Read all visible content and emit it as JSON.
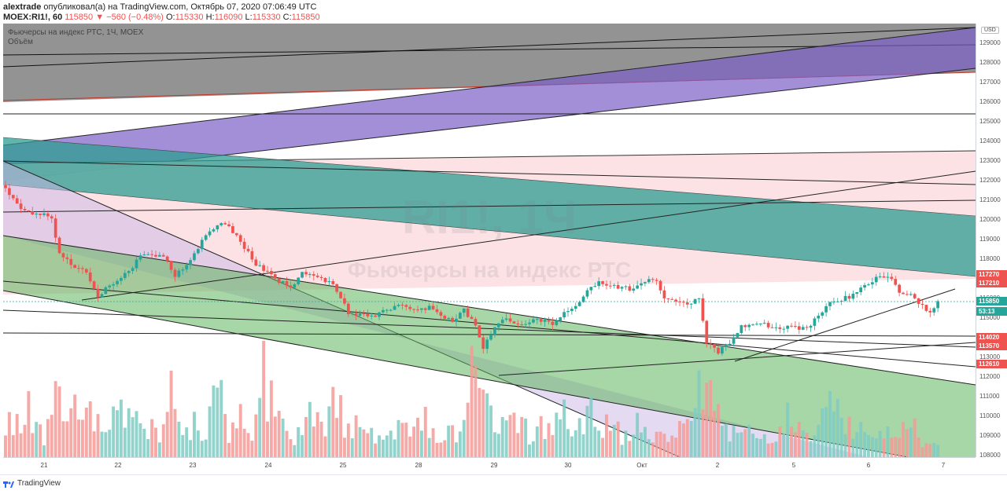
{
  "header": {
    "user": "alextrade",
    "published": "опубликовал(а) на TradingView.com, Октябрь 07, 2020 07:06:49 UTC",
    "symbol": "MOEX:RI1!, 60",
    "last": "115850",
    "change": "−560 (−0.48%)",
    "o_label": "O:",
    "o": "115330",
    "h_label": "H:",
    "h": "116090",
    "l_label": "L:",
    "l": "115330",
    "c_label": "C:",
    "c": "115850"
  },
  "legend": {
    "title": "Фьючерсы на индекс РТС, 1Ч, MOEX",
    "volume": "Объём"
  },
  "watermark": {
    "symbol": "RI1!, 1Ч",
    "description": "Фьючерсы на индекс РТС"
  },
  "footer": {
    "brand": "TradingView"
  },
  "colors": {
    "up": "#26a69a",
    "down": "#ef5350",
    "vol_up": "#7fcbc3",
    "vol_down": "#f49b98"
  },
  "chart_data": {
    "type": "candlestick",
    "currency": "USD",
    "y_ticks": [
      108000,
      109000,
      110000,
      111000,
      112000,
      113000,
      114000,
      115000,
      116000,
      117000,
      118000,
      119000,
      120000,
      121000,
      122000,
      123000,
      124000,
      125000,
      126000,
      127000,
      128000,
      129000
    ],
    "ylim": [
      107900,
      130000
    ],
    "x_labels": [
      "21",
      "22",
      "23",
      "24",
      "25",
      "28",
      "29",
      "30",
      "Окт",
      "2",
      "5",
      "6",
      "7"
    ],
    "price_tags": [
      {
        "label": "117270",
        "value": 117270,
        "color": "#ef5350"
      },
      {
        "label": "117210",
        "value": 117210,
        "color": "#ef5350"
      },
      {
        "label": "115850",
        "value": 115850,
        "color": "#26a69a"
      },
      {
        "label": "53:13",
        "value": 115500,
        "color": "#26a69a"
      },
      {
        "label": "114020",
        "value": 114020,
        "color": "#ef5350"
      },
      {
        "label": "113570",
        "value": 113570,
        "color": "#ef5350"
      },
      {
        "label": "112610",
        "value": 112610,
        "color": "#ef5350"
      }
    ],
    "last_price": 115850,
    "close_path": [
      [
        0,
        121600
      ],
      [
        4,
        120500
      ],
      [
        8,
        120300
      ],
      [
        12,
        120100
      ],
      [
        14,
        118300
      ],
      [
        18,
        117600
      ],
      [
        21,
        117400
      ],
      [
        24,
        116100
      ],
      [
        26,
        116500
      ],
      [
        29,
        116900
      ],
      [
        32,
        117300
      ],
      [
        35,
        118200
      ],
      [
        38,
        118300
      ],
      [
        41,
        118100
      ],
      [
        44,
        117200
      ],
      [
        47,
        117600
      ],
      [
        50,
        118600
      ],
      [
        53,
        119500
      ],
      [
        56,
        119900
      ],
      [
        59,
        119400
      ],
      [
        62,
        118600
      ],
      [
        65,
        117700
      ],
      [
        68,
        117400
      ],
      [
        71,
        116900
      ],
      [
        74,
        116600
      ],
      [
        77,
        117300
      ],
      [
        80,
        117100
      ],
      [
        84,
        116800
      ],
      [
        86,
        116400
      ],
      [
        89,
        115200
      ],
      [
        92,
        115100
      ],
      [
        95,
        115100
      ],
      [
        98,
        115300
      ],
      [
        101,
        115600
      ],
      [
        104,
        115500
      ],
      [
        107,
        115400
      ],
      [
        110,
        115500
      ],
      [
        113,
        115100
      ],
      [
        116,
        114800
      ],
      [
        119,
        115400
      ],
      [
        122,
        114600
      ],
      [
        124,
        113500
      ],
      [
        127,
        114600
      ],
      [
        130,
        114900
      ],
      [
        133,
        114700
      ],
      [
        136,
        114800
      ],
      [
        139,
        114900
      ],
      [
        142,
        114700
      ],
      [
        145,
        115200
      ],
      [
        148,
        115600
      ],
      [
        151,
        116300
      ],
      [
        154,
        116800
      ],
      [
        157,
        116700
      ],
      [
        160,
        116500
      ],
      [
        163,
        116500
      ],
      [
        166,
        116900
      ],
      [
        169,
        116800
      ],
      [
        171,
        116000
      ],
      [
        174,
        115800
      ],
      [
        177,
        115700
      ],
      [
        180,
        115900
      ],
      [
        182,
        113700
      ],
      [
        185,
        113300
      ],
      [
        188,
        113700
      ],
      [
        191,
        114500
      ],
      [
        194,
        114600
      ],
      [
        197,
        114700
      ],
      [
        200,
        114400
      ],
      [
        203,
        114600
      ],
      [
        206,
        114500
      ],
      [
        209,
        114500
      ],
      [
        211,
        115200
      ],
      [
        214,
        115700
      ],
      [
        217,
        115900
      ],
      [
        220,
        116200
      ],
      [
        223,
        116600
      ],
      [
        226,
        117000
      ],
      [
        229,
        117100
      ],
      [
        232,
        116400
      ],
      [
        235,
        116200
      ],
      [
        237,
        115700
      ],
      [
        240,
        115300
      ],
      [
        242,
        115850
      ]
    ],
    "volume_path": [
      [
        0,
        0.3
      ],
      [
        6,
        0.45
      ],
      [
        10,
        0.2
      ],
      [
        13,
        0.7
      ],
      [
        16,
        0.35
      ],
      [
        20,
        0.55
      ],
      [
        24,
        0.3
      ],
      [
        27,
        0.2
      ],
      [
        30,
        0.65
      ],
      [
        33,
        0.3
      ],
      [
        36,
        0.35
      ],
      [
        40,
        0.2
      ],
      [
        43,
        0.6
      ],
      [
        46,
        0.25
      ],
      [
        49,
        0.3
      ],
      [
        52,
        0.2
      ],
      [
        55,
        0.65
      ],
      [
        58,
        0.25
      ],
      [
        61,
        0.35
      ],
      [
        64,
        0.2
      ],
      [
        67,
        0.8
      ],
      [
        70,
        0.45
      ],
      [
        73,
        0.25
      ],
      [
        76,
        0.2
      ],
      [
        79,
        0.4
      ],
      [
        82,
        0.25
      ],
      [
        85,
        0.65
      ],
      [
        88,
        0.3
      ],
      [
        91,
        0.3
      ],
      [
        94,
        0.2
      ],
      [
        97,
        0.25
      ],
      [
        100,
        0.2
      ],
      [
        103,
        0.45
      ],
      [
        106,
        0.25
      ],
      [
        109,
        0.35
      ],
      [
        112,
        0.15
      ],
      [
        115,
        0.25
      ],
      [
        118,
        0.2
      ],
      [
        121,
        0.8
      ],
      [
        124,
        0.5
      ],
      [
        127,
        0.3
      ],
      [
        130,
        0.25
      ],
      [
        133,
        0.45
      ],
      [
        136,
        0.2
      ],
      [
        139,
        0.3
      ],
      [
        142,
        0.25
      ],
      [
        145,
        0.4
      ],
      [
        148,
        0.2
      ],
      [
        151,
        0.5
      ],
      [
        154,
        0.25
      ],
      [
        157,
        0.4
      ],
      [
        160,
        0.2
      ],
      [
        163,
        0.3
      ],
      [
        166,
        0.35
      ],
      [
        169,
        0.2
      ],
      [
        172,
        0.15
      ],
      [
        175,
        0.25
      ],
      [
        178,
        0.3
      ],
      [
        181,
        0.7
      ],
      [
        184,
        0.45
      ],
      [
        187,
        0.3
      ],
      [
        190,
        0.2
      ],
      [
        193,
        0.25
      ],
      [
        196,
        0.15
      ],
      [
        199,
        0.2
      ],
      [
        202,
        0.45
      ],
      [
        205,
        0.2
      ],
      [
        208,
        0.3
      ],
      [
        211,
        0.25
      ],
      [
        214,
        0.65
      ],
      [
        217,
        0.3
      ],
      [
        220,
        0.25
      ],
      [
        223,
        0.4
      ],
      [
        226,
        0.2
      ],
      [
        229,
        0.3
      ],
      [
        232,
        0.2
      ],
      [
        235,
        0.35
      ],
      [
        238,
        0.15
      ],
      [
        242,
        0.1
      ]
    ],
    "bar_count": 243
  }
}
